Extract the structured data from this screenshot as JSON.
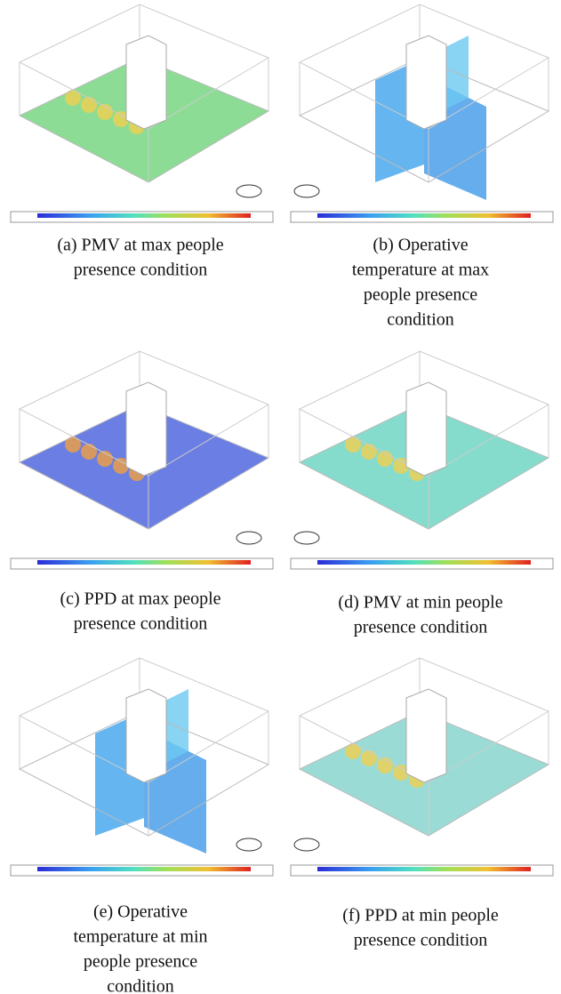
{
  "panels": [
    {
      "caption": [
        "(a) PMV at max people",
        "presence condition"
      ]
    },
    {
      "caption": [
        "(b) Operative",
        "temperature at max",
        "people presence",
        "condition"
      ]
    },
    {
      "caption": [
        "(c) PPD at max people",
        "presence condition"
      ]
    },
    {
      "caption": [
        "(d) PMV at min people",
        "presence condition"
      ]
    },
    {
      "caption": [
        "(e) Operative",
        "temperature at min",
        "people presence",
        "condition"
      ]
    },
    {
      "caption": [
        "(f) PPD at min people",
        "presence condition"
      ]
    }
  ]
}
